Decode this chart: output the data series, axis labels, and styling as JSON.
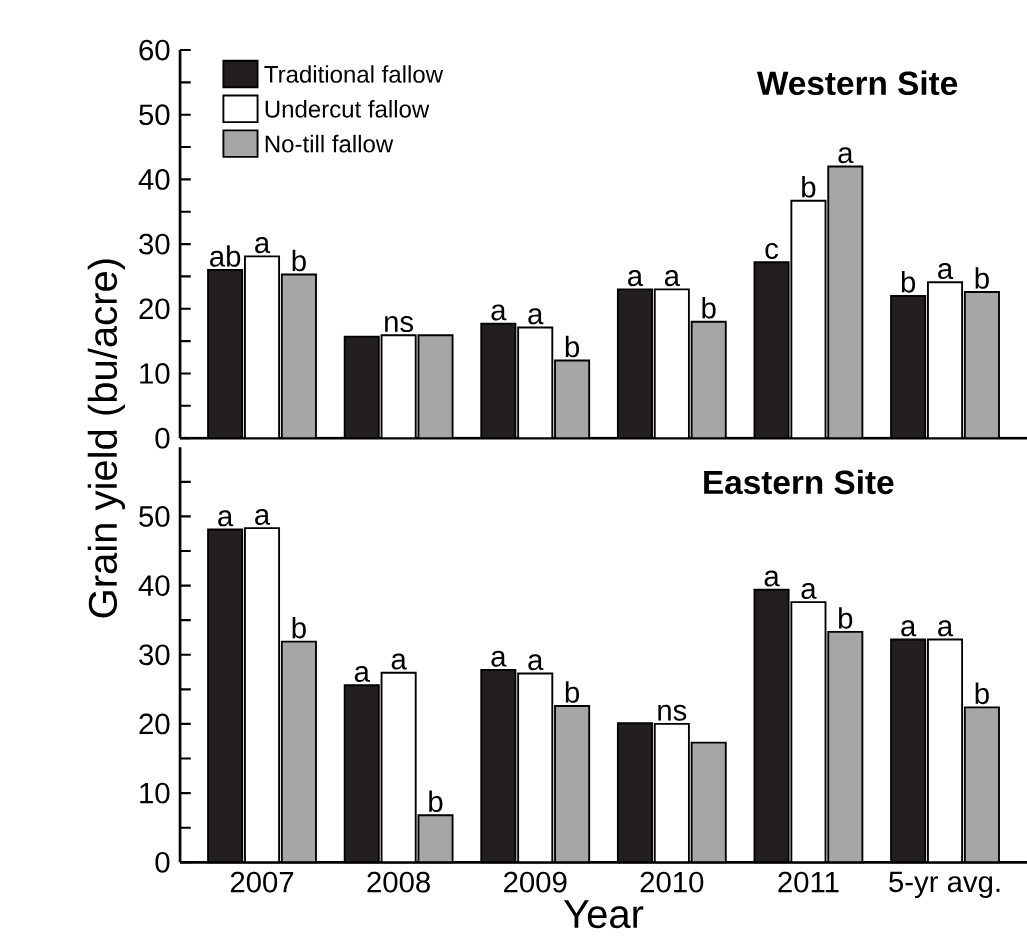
{
  "chart_data": [
    {
      "type": "bar",
      "title": "Western Site",
      "ylabel": "Grain yield (bu/acre)",
      "categories": [
        null,
        null,
        null,
        null,
        null,
        null
      ],
      "series": [
        {
          "name": "Traditional fallow",
          "color": "#231f20",
          "values": [
            26.0,
            15.7,
            17.7,
            23.0,
            27.2,
            22.0
          ],
          "value_labels": [
            "ab",
            null,
            "a",
            "a",
            "c",
            "b"
          ]
        },
        {
          "name": "Undercut fallow",
          "color": "#ffffff",
          "values": [
            28.1,
            15.9,
            17.1,
            23.0,
            36.7,
            24.1
          ],
          "value_labels": [
            "a",
            "ns",
            "a",
            "a",
            "b",
            "a"
          ]
        },
        {
          "name": "No-till fallow",
          "color": "#a6a6a6",
          "values": [
            25.3,
            15.9,
            12.0,
            18.0,
            42.0,
            22.6
          ],
          "value_labels": [
            "b",
            null,
            "b",
            "b",
            "a",
            "b"
          ]
        }
      ],
      "ylim": [
        0,
        60
      ],
      "yticks": [
        0,
        {
          "value": 5,
          "label": null
        },
        10,
        {
          "value": 15,
          "label": null
        },
        20,
        {
          "value": 25,
          "label": null
        },
        30,
        {
          "value": 35,
          "label": null
        },
        40,
        {
          "value": 45,
          "label": null
        },
        50,
        {
          "value": 55,
          "label": null
        },
        60
      ],
      "tick_labels": "y",
      "legend": "top left"
    },
    {
      "type": "bar",
      "title": "Eastern Site",
      "xlabel": "Year",
      "categories": [
        "2007",
        "2008",
        "2009",
        "2010",
        "2011",
        "5-yr avg."
      ],
      "series": [
        {
          "color": "#231f20",
          "values": [
            48.1,
            25.6,
            27.8,
            20.1,
            39.4,
            32.2
          ],
          "value_labels": [
            "a",
            "a",
            "a",
            null,
            "a",
            "a"
          ]
        },
        {
          "color": "#ffffff",
          "values": [
            48.3,
            27.4,
            27.3,
            20.0,
            37.6,
            32.2
          ],
          "value_labels": [
            "a",
            "a",
            "a",
            "ns",
            "a",
            "a"
          ]
        },
        {
          "color": "#a6a6a6",
          "values": [
            31.9,
            6.8,
            22.6,
            17.3,
            33.3,
            22.4
          ],
          "value_labels": [
            "b",
            "b",
            "b",
            null,
            "b",
            "b"
          ]
        }
      ],
      "ylim": [
        0,
        60
      ],
      "yticks": [
        0,
        {
          "value": 5,
          "label": null
        },
        10,
        {
          "value": 15,
          "label": null
        },
        20,
        {
          "value": 25,
          "label": null
        },
        30,
        {
          "value": 35,
          "label": null
        },
        40,
        {
          "value": 45,
          "label": null
        },
        50,
        {
          "value": 55,
          "label": null
        }
      ]
    }
  ]
}
